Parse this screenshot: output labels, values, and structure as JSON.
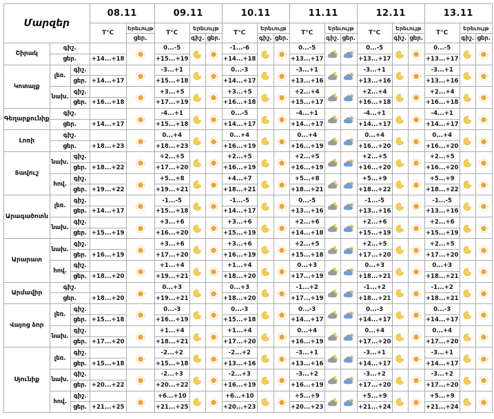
{
  "chart_data": {
    "type": "table",
    "corner_label": "Մարզեր",
    "temp_header": "T°C",
    "phenomenon_header": "Երեւույթ",
    "night_label": "գիշ.",
    "day_label": "ցեր.",
    "dates": [
      "08.11",
      "09.11",
      "10.11",
      "11.11",
      "12.11",
      "13.11"
    ],
    "date_icons": [
      [
        null,
        "sun"
      ],
      [
        "moon",
        "sun"
      ],
      [
        "moon",
        "sun"
      ],
      [
        "cloud-moon",
        "cloud-sun"
      ],
      [
        "moon",
        "sun"
      ],
      [
        "moon",
        "sun"
      ]
    ],
    "regions": [
      {
        "name": "Շիրակ",
        "zones": [
          {
            "label": null,
            "temps": [
              [
                "",
                "+14...+18"
              ],
              [
                "0...-5",
                "+15...+19"
              ],
              [
                "-1...-6",
                "+14...+18"
              ],
              [
                "0...-5",
                "+13...+17"
              ],
              [
                "0...-5",
                "+13...+17"
              ],
              [
                "0...-5",
                "+13...+17"
              ]
            ]
          }
        ]
      },
      {
        "name": "Կոտայք",
        "zones": [
          {
            "label": "լեռ.",
            "temps": [
              [
                "",
                "+14...+17"
              ],
              [
                "-3...+1",
                "+15...+18"
              ],
              [
                "0...-3",
                "+14...+17"
              ],
              [
                "-3...+1",
                "+13...+16"
              ],
              [
                "-3...+1",
                "+13...+16"
              ],
              [
                "-3...+1",
                "+13...+16"
              ]
            ]
          },
          {
            "label": "նախ.",
            "temps": [
              [
                "",
                "+16...+18"
              ],
              [
                "+3...+5",
                "+17...+19"
              ],
              [
                "+3...+5",
                "+16...+18"
              ],
              [
                "+2...+4",
                "+15...+17"
              ],
              [
                "+2...+4",
                "+16...+18"
              ],
              [
                "+2...+4",
                "+16...+18"
              ]
            ]
          }
        ]
      },
      {
        "name": "Գեղարքունիք",
        "zones": [
          {
            "label": null,
            "temps": [
              [
                "",
                "+14...+17"
              ],
              [
                "-4...+1",
                "+15...+18"
              ],
              [
                "0...-5",
                "+14...+17"
              ],
              [
                "-4...+1",
                "+14...+17"
              ],
              [
                "-4...+1",
                "+14...+17"
              ],
              [
                "-4...+1",
                "+14...+17"
              ]
            ]
          }
        ]
      },
      {
        "name": "Լոռի",
        "zones": [
          {
            "label": null,
            "temps": [
              [
                "",
                "+18...+23"
              ],
              [
                "0...+4",
                "+18...+23"
              ],
              [
                "0...+4",
                "+16...+19"
              ],
              [
                "0...+4",
                "+16...+19"
              ],
              [
                "0...+4",
                "+16...+20"
              ],
              [
                "0...+4",
                "+16...+20"
              ]
            ]
          }
        ]
      },
      {
        "name": "Տավուշ",
        "zones": [
          {
            "label": "նախ.",
            "temps": [
              [
                "",
                "+18...+22"
              ],
              [
                "+2...+5",
                "+17...+20"
              ],
              [
                "+2...+5",
                "+16...+19"
              ],
              [
                "+2...+5",
                "+16...+19"
              ],
              [
                "+2...+5",
                "+16...+20"
              ],
              [
                "+2...+5",
                "+16...+20"
              ]
            ]
          },
          {
            "label": "հով.",
            "temps": [
              [
                "",
                "+19...+22"
              ],
              [
                "+5...+8",
                "+19...+21"
              ],
              [
                "+4...+7",
                "+18...+21"
              ],
              [
                "+5...+8",
                "+18...+21"
              ],
              [
                "+5...+9",
                "+18...+22"
              ],
              [
                "+5...+9",
                "+18...+22"
              ]
            ]
          }
        ]
      },
      {
        "name": "Արագածոտն",
        "zones": [
          {
            "label": "լեռ.",
            "temps": [
              [
                "",
                "+14...+17"
              ],
              [
                "-1...-5",
                "+15...+18"
              ],
              [
                "-1...-5",
                "+14...+17"
              ],
              [
                "0...-5",
                "+13...+16"
              ],
              [
                "-1...-5",
                "+13...+16"
              ],
              [
                "-1...-5",
                "+13...+16"
              ]
            ]
          },
          {
            "label": "նախ.",
            "temps": [
              [
                "",
                "+15...+19"
              ],
              [
                "+3...+6",
                "+16...+20"
              ],
              [
                "+3...+6",
                "+15...+19"
              ],
              [
                "+2...+6",
                "+14...+18"
              ],
              [
                "+2...+6",
                "+15...+19"
              ],
              [
                "+2...+6",
                "+15...+19"
              ]
            ]
          }
        ]
      },
      {
        "name": "Արարատ",
        "zones": [
          {
            "label": "նախ.",
            "temps": [
              [
                "",
                "+16...+19"
              ],
              [
                "+3...+6",
                "+17...+20"
              ],
              [
                "+3...+6",
                "+16...+19"
              ],
              [
                "+2...+5",
                "+15...+18"
              ],
              [
                "+2...+5",
                "+17...+20"
              ],
              [
                "+2...+5",
                "+17...+20"
              ]
            ]
          },
          {
            "label": "հով.",
            "temps": [
              [
                "",
                "+18...+20"
              ],
              [
                "+1...+4",
                "+19...+21"
              ],
              [
                "+1...+4",
                "+18...+20"
              ],
              [
                "0...+3",
                "+17...+19"
              ],
              [
                "0...+3",
                "+18...+21"
              ],
              [
                "0...+3",
                "+18...+21"
              ]
            ]
          }
        ]
      },
      {
        "name": "Արմավիր",
        "zones": [
          {
            "label": null,
            "temps": [
              [
                "",
                "+18...+20"
              ],
              [
                "0...+3",
                "+19...+21"
              ],
              [
                "0...+3",
                "+18...+20"
              ],
              [
                "-1...+2",
                "+17...+19"
              ],
              [
                "-1...+2",
                "+18...+21"
              ],
              [
                "-1...+2",
                "+18...+21"
              ]
            ]
          }
        ]
      },
      {
        "name": "Վայոց ձոր",
        "zones": [
          {
            "label": "լեռ.",
            "temps": [
              [
                "",
                "+15...+18"
              ],
              [
                "0...-3",
                "+16...+19"
              ],
              [
                "0...-3",
                "+15...+18"
              ],
              [
                "0...-3",
                "+14...+17"
              ],
              [
                "0...-3",
                "+14...+17"
              ],
              [
                "0...-3",
                "+14...+17"
              ]
            ]
          },
          {
            "label": "նախ.",
            "temps": [
              [
                "",
                "+17...+20"
              ],
              [
                "+1...+4",
                "+18...+21"
              ],
              [
                "+1...+4",
                "+17...+20"
              ],
              [
                "0...+4",
                "+16...+19"
              ],
              [
                "0...+4",
                "+17...+20"
              ],
              [
                "0...+4",
                "+17...+20"
              ]
            ]
          }
        ]
      },
      {
        "name": "Սյունիք",
        "zones": [
          {
            "label": "լեռ.",
            "temps": [
              [
                "",
                "+15...+18"
              ],
              [
                "-2...+2",
                "+15...+18"
              ],
              [
                "-2...+2",
                "+13...+16"
              ],
              [
                "-3...+1",
                "+13...+16"
              ],
              [
                "-3...+1",
                "+14...+17"
              ],
              [
                "-3...+1",
                "+14...+17"
              ]
            ]
          },
          {
            "label": "նախ.",
            "temps": [
              [
                "",
                "+20...+22"
              ],
              [
                "-2...+3",
                "+20...+22"
              ],
              [
                "-2...+3",
                "+16...+19"
              ],
              [
                "-3...+2",
                "+16...+19"
              ],
              [
                "-3...+2",
                "+17...+20"
              ],
              [
                "-3...+2",
                "+17...+20"
              ]
            ]
          },
          {
            "label": "հով.",
            "temps": [
              [
                "",
                "+21...+25"
              ],
              [
                "+6...+10",
                "+21...+25"
              ],
              [
                "+6...+10",
                "+20...+23"
              ],
              [
                "+5...+9",
                "+20...+23"
              ],
              [
                "+5...+9",
                "+21...+24"
              ],
              [
                "+5...+9",
                "+21...+24"
              ]
            ]
          }
        ]
      }
    ]
  },
  "colors": {
    "sun": "#f2a233",
    "sun_rays": "#f3b55e",
    "moon": "#f6cf4a",
    "moon_edge": "#dca92a",
    "cloud_night": "#9b9b9b",
    "cloud_day": "#6f9fd2",
    "border": "#aaaaaa",
    "text": "#14141f"
  }
}
